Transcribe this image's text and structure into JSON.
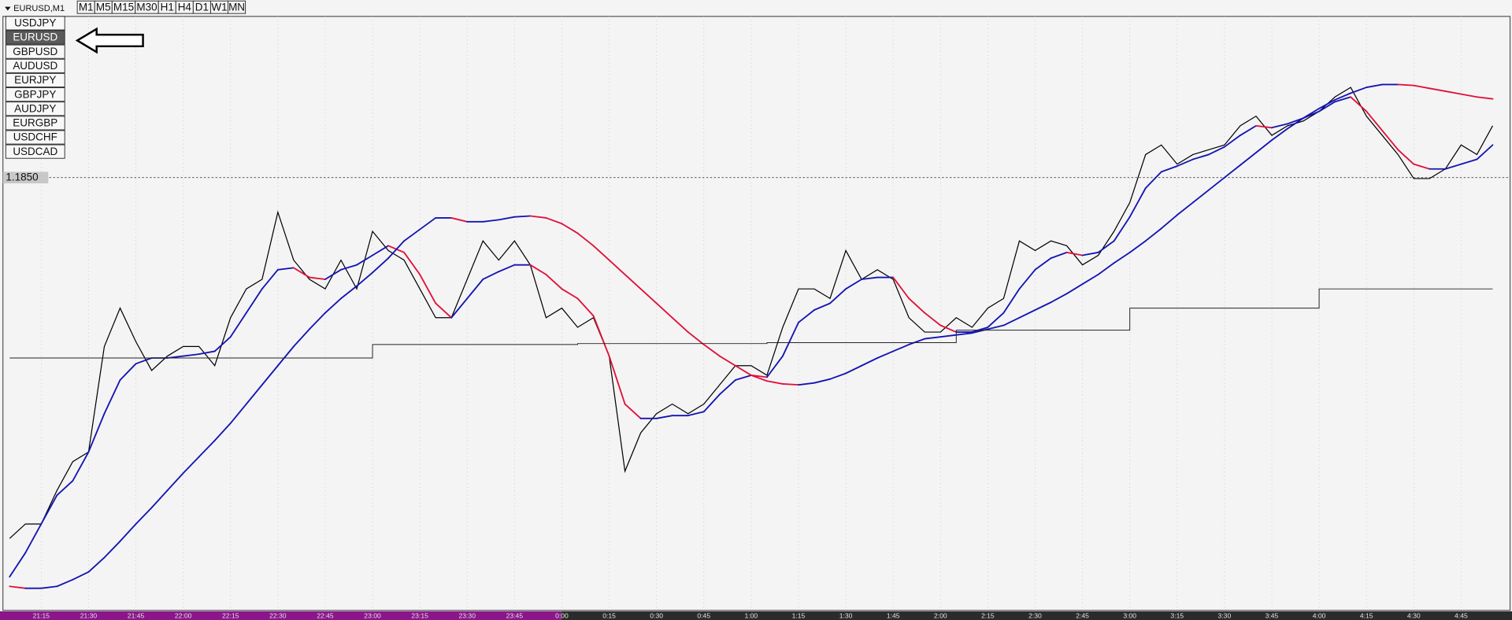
{
  "ui": {
    "symbol_header": "EURUSD,M1",
    "timeframes": [
      "M1",
      "M5",
      "M15",
      "M30",
      "H1",
      "H4",
      "D1",
      "W1",
      "MN"
    ],
    "symbols": [
      "USDJPY",
      "EURUSD",
      "GBPUSD",
      "AUDUSD",
      "EURJPY",
      "GBPJPY",
      "AUDJPY",
      "EURGBP",
      "USDCHF",
      "USDCAD"
    ],
    "selected_symbol": 1
  },
  "chart_data": {
    "type": "line",
    "categories": [
      null,
      null,
      "21:15",
      null,
      null,
      "21:30",
      null,
      null,
      "21:45",
      null,
      null,
      "22:00",
      null,
      null,
      "22:15",
      null,
      null,
      "22:30",
      null,
      null,
      "22:45",
      null,
      null,
      "23:00",
      null,
      null,
      "23:15",
      null,
      null,
      "23:30",
      null,
      null,
      "23:45",
      null,
      null,
      "0:00",
      null,
      null,
      "0:15",
      null,
      null,
      "0:30",
      null,
      null,
      "0:45",
      null,
      null,
      "1:00",
      null,
      null,
      "1:15",
      null,
      null,
      "1:30",
      null,
      null,
      "1:45",
      null,
      null,
      "2:00",
      null,
      null,
      "2:15",
      null,
      null,
      "2:30",
      null,
      null,
      "2:45",
      null,
      null,
      "3:00",
      null,
      null,
      "3:15",
      null,
      null,
      "3:30",
      null,
      null,
      "3:45",
      null,
      null,
      "4:00",
      null,
      null,
      "4:15",
      null,
      null,
      "4:30",
      null,
      null,
      "4:45",
      null,
      null
    ],
    "ylim": [
      1.1805,
      1.1867
    ],
    "yticks": [
      {
        "value": 1.185,
        "label": "1.1850"
      }
    ],
    "series": [
      {
        "color": "#000000",
        "values": [
          1.18124,
          1.18139,
          1.18139,
          1.18174,
          1.18204,
          1.18214,
          1.18324,
          1.18364,
          1.18329,
          1.18299,
          1.18314,
          1.18324,
          1.18324,
          1.18304,
          1.18354,
          1.18384,
          1.18394,
          1.18464,
          1.18414,
          1.18394,
          1.18384,
          1.18414,
          1.18384,
          1.18444,
          1.18424,
          1.18414,
          1.18384,
          1.18354,
          1.18354,
          1.18394,
          1.18434,
          1.18414,
          1.18434,
          1.18409,
          1.18354,
          1.18364,
          1.18344,
          1.18354,
          1.18314,
          1.18194,
          1.18234,
          1.18254,
          1.18264,
          1.18254,
          1.18264,
          1.18284,
          1.18304,
          1.18304,
          1.18294,
          1.18344,
          1.18384,
          1.18384,
          1.18374,
          1.18424,
          1.18394,
          1.18404,
          1.18394,
          1.18354,
          1.18339,
          1.18339,
          1.18354,
          1.18344,
          1.18364,
          1.18374,
          1.18434,
          1.18424,
          1.18434,
          1.18429,
          1.18409,
          1.18419,
          1.18444,
          1.18474,
          1.18524,
          1.18534,
          1.18514,
          1.18524,
          1.18529,
          1.18534,
          1.18554,
          1.18564,
          1.18544,
          1.18554,
          1.18559,
          1.18569,
          1.18584,
          1.18594,
          1.18564,
          1.18544,
          1.18524,
          1.18499,
          1.18499,
          1.18509,
          1.18534,
          1.18524,
          1.18554
        ]
      },
      {
        "color_up": "#1414b4",
        "color_down": "#e0103a",
        "values": [
          1.18084,
          1.18109,
          1.18139,
          1.18169,
          1.18184,
          1.18214,
          1.18254,
          1.18289,
          1.18306,
          1.18312,
          1.18312,
          1.18314,
          1.18316,
          1.18319,
          1.18334,
          1.18359,
          1.18384,
          1.18404,
          1.18406,
          1.18396,
          1.18394,
          1.18404,
          1.18409,
          1.18419,
          1.18429,
          1.18422,
          1.18399,
          1.18369,
          1.18354,
          1.18374,
          1.18394,
          1.18402,
          1.18409,
          1.18409,
          1.18399,
          1.18384,
          1.18374,
          1.18356,
          1.18314,
          1.18264,
          1.18249,
          1.18249,
          1.18252,
          1.18252,
          1.18256,
          1.18274,
          1.18289,
          1.18294,
          1.18292,
          1.18314,
          1.18349,
          1.18362,
          1.18369,
          1.18384,
          1.18394,
          1.18396,
          1.18396,
          1.18374,
          1.18359,
          1.18346,
          1.18339,
          1.18339,
          1.18344,
          1.18359,
          1.18384,
          1.18404,
          1.18416,
          1.18422,
          1.18419,
          1.18422,
          1.18434,
          1.18459,
          1.18489,
          1.18506,
          1.18512,
          1.18519,
          1.18524,
          1.18532,
          1.18544,
          1.18554,
          1.18552,
          1.18556,
          1.18562,
          1.18569,
          1.18579,
          1.18584,
          1.18569,
          1.18549,
          1.18529,
          1.18514,
          1.18509,
          1.18509,
          1.18514,
          1.18519,
          1.18534
        ]
      },
      {
        "color_up": "#1414b4",
        "color_down": "#e0103a",
        "values": [
          1.18074,
          1.18072,
          1.18072,
          1.18074,
          1.18081,
          1.18089,
          1.18104,
          1.18121,
          1.18139,
          1.18156,
          1.18174,
          1.18192,
          1.18209,
          1.18226,
          1.18244,
          1.18264,
          1.18284,
          1.18304,
          1.18324,
          1.18342,
          1.18359,
          1.18374,
          1.18387,
          1.18401,
          1.18416,
          1.18434,
          1.18446,
          1.18458,
          1.18458,
          1.18454,
          1.18454,
          1.18456,
          1.18459,
          1.1846,
          1.18458,
          1.18452,
          1.18442,
          1.18429,
          1.18414,
          1.18399,
          1.18384,
          1.18369,
          1.18354,
          1.18339,
          1.18326,
          1.18314,
          1.18304,
          1.18294,
          1.18288,
          1.18285,
          1.18284,
          1.18286,
          1.1829,
          1.18296,
          1.18304,
          1.18312,
          1.18319,
          1.18326,
          1.18332,
          1.18334,
          1.18336,
          1.18338,
          1.18342,
          1.18346,
          1.18354,
          1.18362,
          1.1837,
          1.18379,
          1.18389,
          1.18399,
          1.18411,
          1.18422,
          1.18434,
          1.18447,
          1.18461,
          1.18474,
          1.18487,
          1.185,
          1.18513,
          1.18526,
          1.18539,
          1.18551,
          1.18562,
          1.18572,
          1.18581,
          1.18588,
          1.18594,
          1.18597,
          1.18597,
          1.18596,
          1.18593,
          1.1859,
          1.18587,
          1.18584,
          1.18582
        ]
      },
      {
        "color": "#222222",
        "step": true,
        "values": [
          1.18312,
          1.18312,
          1.18312,
          1.18312,
          1.18312,
          1.18312,
          1.18312,
          1.18312,
          1.18312,
          1.18312,
          1.18312,
          1.18312,
          1.18312,
          1.18312,
          1.18312,
          1.18312,
          1.18312,
          1.18312,
          1.18312,
          1.18312,
          1.18312,
          1.18312,
          1.18312,
          1.18326,
          1.18326,
          1.18326,
          1.18326,
          1.18326,
          1.18326,
          1.18326,
          1.18326,
          1.18326,
          1.18326,
          1.18326,
          1.18326,
          1.18326,
          1.18327,
          1.18327,
          1.18327,
          1.18327,
          1.18327,
          1.18327,
          1.18327,
          1.18327,
          1.18327,
          1.18327,
          1.18327,
          1.18327,
          1.18328,
          1.18328,
          1.18328,
          1.18328,
          1.18328,
          1.18328,
          1.18328,
          1.18328,
          1.18328,
          1.18328,
          1.18328,
          1.18328,
          1.18341,
          1.18341,
          1.18341,
          1.18341,
          1.18341,
          1.18341,
          1.18341,
          1.18341,
          1.18341,
          1.18341,
          1.18341,
          1.18364,
          1.18364,
          1.18364,
          1.18364,
          1.18364,
          1.18364,
          1.18364,
          1.18364,
          1.18364,
          1.18364,
          1.18364,
          1.18364,
          1.18384,
          1.18384,
          1.18384,
          1.18384,
          1.18384,
          1.18384,
          1.18384,
          1.18384,
          1.18384,
          1.18384,
          1.18384,
          1.18384
        ]
      }
    ]
  }
}
